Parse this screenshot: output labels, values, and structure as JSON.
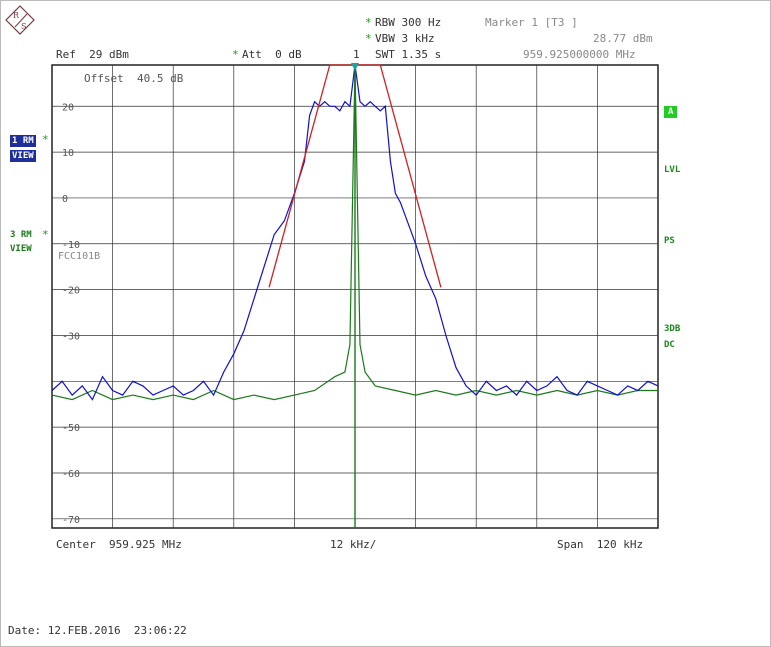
{
  "header": {
    "rbw": "RBW 300 Hz",
    "vbw": "VBW 3 kHz",
    "swt": "SWT 1.35 s",
    "swt_marker": "1",
    "att": "Att  0 dB",
    "ref": "Ref  29 dBm",
    "offset": "Offset  40.5 dB",
    "star": "*",
    "marker_title": "Marker 1 [T3 ]",
    "marker_level": "28.77 dBm",
    "marker_freq": "959.925000000 MHz"
  },
  "left_tags": {
    "trace1": "1 RM",
    "trace1_view": "VIEW",
    "trace3": "3 RM",
    "trace3_view": "VIEW",
    "star": "*"
  },
  "right_tags": {
    "a": "A",
    "lvl": "LVL",
    "ps": "PS",
    "tdb": "3DB",
    "dc": "DC"
  },
  "limit_line_label": "FCC101B",
  "footer": {
    "center": "Center  959.925 MHz",
    "div": "12 kHz/",
    "span": "Span  120 kHz",
    "date": "Date: 12.FEB.2016  23:06:22"
  },
  "colors": {
    "trace1": "#1010d0",
    "trace3": "#1a7a1a",
    "limit": "#d02020",
    "grid": "#333333",
    "marker": "#20a0a0"
  },
  "chart_data": {
    "type": "line",
    "x_unit": "kHz offset from center",
    "xlim": [
      -60,
      60
    ],
    "ylim": [
      -72,
      29
    ],
    "y_ticks": [
      20,
      10,
      0,
      -10,
      -20,
      -30,
      -40,
      -50,
      -60,
      -70
    ],
    "y_tick_labels": [
      "20",
      "10",
      "0",
      "-10",
      "-20",
      "-30",
      "",
      "-50",
      "-60",
      "-70"
    ],
    "grid": true,
    "marker": {
      "x": 0,
      "y": 28.77
    },
    "series": [
      {
        "name": "1 RM",
        "x": [
          -60,
          -58,
          -56,
          -54,
          -52,
          -50,
          -48,
          -46,
          -44,
          -42,
          -40,
          -38,
          -36,
          -34,
          -32,
          -30,
          -28,
          -26,
          -24,
          -22,
          -20,
          -18,
          -16,
          -14,
          -12,
          -10,
          -9,
          -8,
          -7,
          -6,
          -5,
          -4,
          -3,
          -2,
          -1,
          0,
          1,
          2,
          3,
          4,
          5,
          6,
          7,
          8,
          9,
          10,
          12,
          14,
          16,
          18,
          20,
          22,
          24,
          26,
          28,
          30,
          32,
          34,
          36,
          38,
          40,
          42,
          44,
          46,
          48,
          50,
          52,
          54,
          56,
          58,
          60
        ],
        "y": [
          -42,
          -40,
          -43,
          -41,
          -44,
          -39,
          -42,
          -43,
          -40,
          -41,
          -43,
          -42,
          -41,
          -43,
          -42,
          -40,
          -43,
          -38,
          -34,
          -29,
          -22,
          -15,
          -8,
          -5,
          1,
          8,
          18,
          21,
          20,
          21,
          20,
          20,
          19,
          21,
          20,
          29,
          21,
          20,
          21,
          20,
          19,
          20,
          8,
          1,
          -1,
          -4,
          -10,
          -17,
          -22,
          -30,
          -37,
          -41,
          -43,
          -40,
          -42,
          -41,
          -43,
          -40,
          -42,
          -41,
          -39,
          -42,
          -43,
          -40,
          -41,
          -42,
          -43,
          -41,
          -42,
          -40,
          -41
        ]
      },
      {
        "name": "3 RM",
        "x": [
          -60,
          -56,
          -52,
          -48,
          -44,
          -40,
          -36,
          -32,
          -28,
          -24,
          -20,
          -16,
          -12,
          -8,
          -4,
          -2,
          -1,
          0,
          1,
          2,
          4,
          8,
          12,
          16,
          20,
          24,
          28,
          32,
          36,
          40,
          44,
          48,
          52,
          56,
          60
        ],
        "y": [
          -43,
          -44,
          -42,
          -44,
          -43,
          -44,
          -43,
          -44,
          -42,
          -44,
          -43,
          -44,
          -43,
          -42,
          -39,
          -38,
          -32,
          29,
          -32,
          -38,
          -41,
          -42,
          -43,
          -42,
          -43,
          -42,
          -43,
          -42,
          -43,
          -42,
          -43,
          -42,
          -43,
          -42,
          -42
        ]
      },
      {
        "name": "FCC101B",
        "x": [
          -17,
          -5,
          5,
          17
        ],
        "y": [
          -19.5,
          29,
          29,
          -19.5
        ]
      }
    ]
  }
}
